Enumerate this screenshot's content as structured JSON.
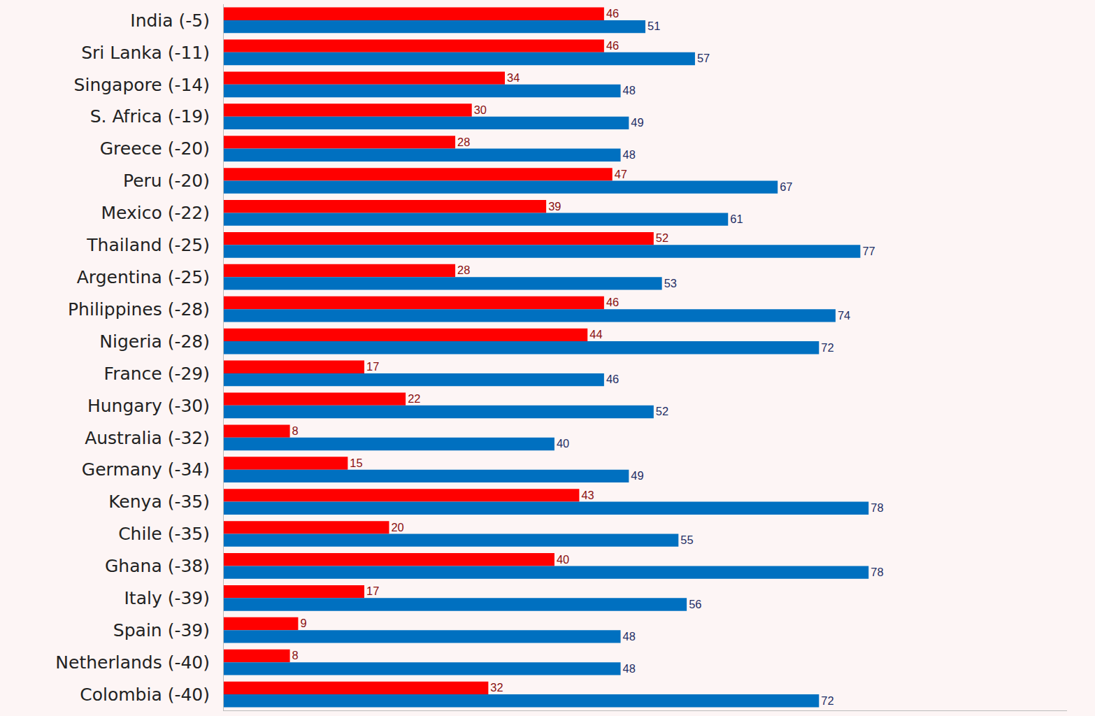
{
  "chart_data": {
    "type": "bar",
    "orientation": "horizontal",
    "data_labels": true,
    "tick_labels": "y",
    "grid": false,
    "categories": [
      "India (-5)",
      "Sri Lanka (-11)",
      "Singapore (-14)",
      "S. Africa (-19)",
      "Greece (-20)",
      "Peru (-20)",
      "Mexico (-22)",
      "Thailand (-25)",
      "Argentina (-25)",
      "Philippines (-28)",
      "Nigeria (-28)",
      "France (-29)",
      "Hungary (-30)",
      "Australia (-32)",
      "Germany (-34)",
      "Kenya (-35)",
      "Chile (-35)",
      "Ghana (-38)",
      "Italy (-39)",
      "Spain (-39)",
      "Netherlands (-40)",
      "Colombia (-40)"
    ],
    "series": [
      {
        "color": "#ff0000",
        "values": [
          46,
          46,
          34,
          30,
          28,
          47,
          39,
          52,
          28,
          46,
          44,
          17,
          22,
          8,
          15,
          43,
          20,
          40,
          17,
          9,
          8,
          32
        ]
      },
      {
        "color": "#0070c0",
        "values": [
          51,
          57,
          48,
          49,
          48,
          67,
          61,
          77,
          53,
          74,
          72,
          46,
          52,
          40,
          49,
          78,
          55,
          78,
          56,
          48,
          48,
          72
        ]
      }
    ],
    "xlim": [
      0,
      102
    ],
    "xticks": []
  }
}
